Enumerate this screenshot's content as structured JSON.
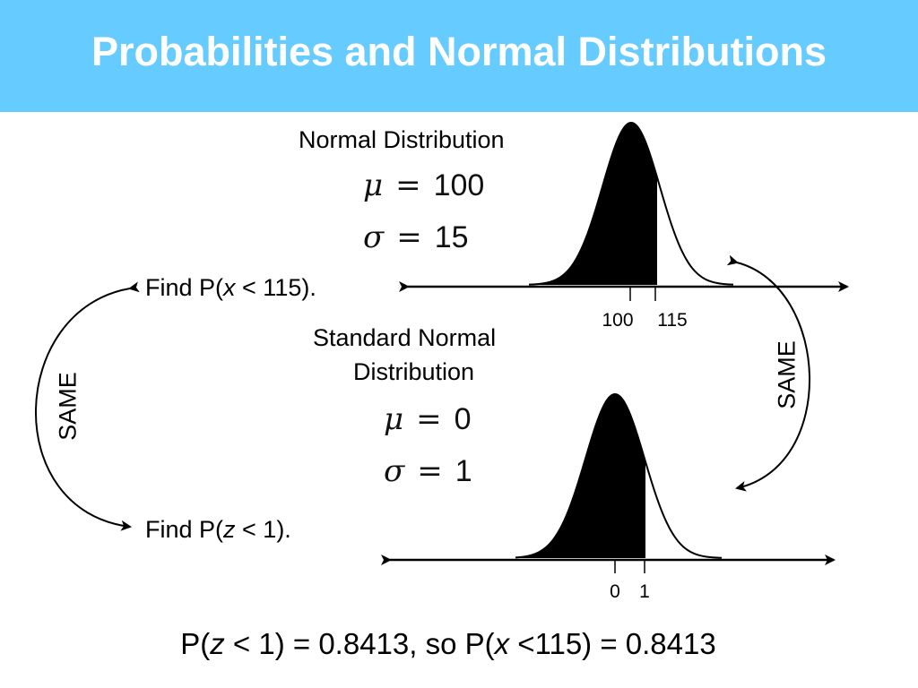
{
  "header": {
    "title": "Probabilities and Normal Distributions",
    "background_color": "#66cbff"
  },
  "top_distribution": {
    "label": "Normal Distribution",
    "mean_symbol": "μ",
    "mean_value": "100",
    "sd_symbol": "σ",
    "sd_value": "15",
    "tick_labels": [
      "100",
      "115"
    ]
  },
  "bottom_distribution": {
    "label_line1": "Standard Normal",
    "label_line2": "Distribution",
    "mean_symbol": "μ",
    "mean_value": "0",
    "sd_symbol": "σ",
    "sd_value": "1",
    "tick_labels": [
      "0",
      "1"
    ]
  },
  "problems": {
    "find_x_prefix": "Find P(",
    "find_x_var": "x",
    "find_x_suffix": " < 115).",
    "find_z_prefix": "Find P(",
    "find_z_var": "z",
    "find_z_suffix": " < 1)."
  },
  "same_labels": {
    "left": "SAME",
    "right": "SAME"
  },
  "conclusion": {
    "part1": "P(",
    "var1": "z",
    "part2": " < 1) = 0.8413, so P(",
    "var2": "x",
    "part3": " <115) = 0.8413"
  }
}
